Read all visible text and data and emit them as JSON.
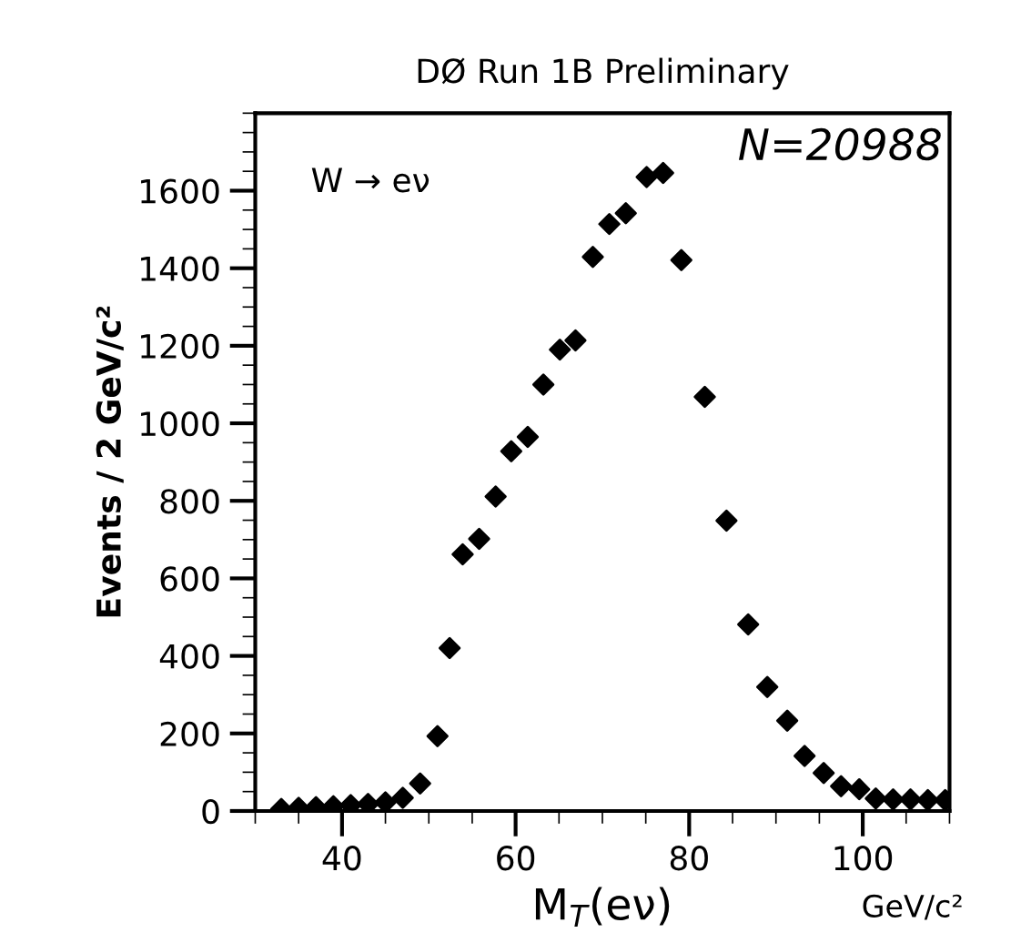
{
  "chart_data": {
    "type": "scatter",
    "title": "DØ Run 1B Preliminary",
    "xlabel": "M$_{T}$(eν)",
    "ylabel": "Events / 2 GeV/c²",
    "annotations": [
      "W → eν",
      "N=20988",
      "GeV/c²"
    ],
    "x": [
      33,
      35,
      37,
      39,
      41,
      43,
      45,
      47,
      49,
      51,
      52.4,
      53.9,
      55.8,
      57.7,
      59.5,
      61.4,
      63.2,
      65.1,
      66.9,
      68.9,
      70.8,
      72.7,
      75.1,
      77.0,
      79.1,
      81.8,
      84.3,
      86.8,
      89.0,
      91.3,
      93.3,
      95.5,
      97.5,
      99.6,
      101.5,
      103.5,
      105.5,
      107.5,
      109.5
    ],
    "series": [
      {
        "color": "#000000",
        "values": [
          5,
          8,
          10,
          12,
          15,
          18,
          22,
          34,
          71,
          193,
          420,
          662,
          702,
          811,
          928,
          965,
          1100,
          1190,
          1214,
          1429,
          1514,
          1542,
          1635,
          1646,
          1421,
          1068,
          749,
          481,
          320,
          233,
          142,
          98,
          64,
          56,
          32,
          30,
          30,
          28,
          28
        ]
      }
    ],
    "marker": "diamond",
    "xlim": [
      30,
      110
    ],
    "ylim": [
      0,
      1800
    ],
    "xticks": [
      40,
      60,
      80,
      100
    ],
    "yticks": [
      0,
      200,
      400,
      600,
      800,
      1000,
      1200,
      1400,
      1600
    ],
    "grid": false,
    "legend": false
  }
}
